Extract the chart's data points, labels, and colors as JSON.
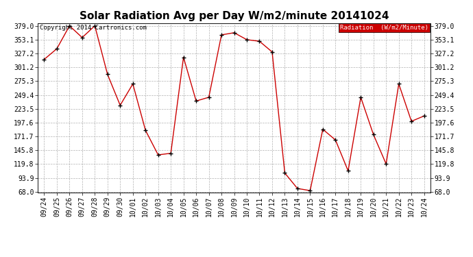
{
  "title": "Solar Radiation Avg per Day W/m2/minute 20141024",
  "copyright_text": "Copyright 2014 Cartronics.com",
  "legend_label": "Radiation  (W/m2/Minute)",
  "x_labels": [
    "09/24",
    "09/25",
    "09/26",
    "09/27",
    "09/28",
    "09/29",
    "09/30",
    "10/01",
    "10/02",
    "10/03",
    "10/04",
    "10/05",
    "10/06",
    "10/07",
    "10/08",
    "10/09",
    "10/10",
    "10/11",
    "10/12",
    "10/13",
    "10/14",
    "10/15",
    "10/16",
    "10/17",
    "10/18",
    "10/19",
    "10/20",
    "10/21",
    "10/22",
    "10/23",
    "10/24"
  ],
  "y_values": [
    316.0,
    336.0,
    379.0,
    357.0,
    379.0,
    288.0,
    230.0,
    270.0,
    183.0,
    137.0,
    140.0,
    320.0,
    238.0,
    245.0,
    362.0,
    366.0,
    353.0,
    350.0,
    330.0,
    103.0,
    74.0,
    70.0,
    185.0,
    165.0,
    107.0,
    245.0,
    175.0,
    120.0,
    270.0,
    200.0,
    210.0
  ],
  "line_color": "#cc0000",
  "marker_color": "#000000",
  "background_color": "#ffffff",
  "grid_color": "#b0b0b0",
  "y_ticks": [
    68.0,
    93.9,
    119.8,
    145.8,
    171.7,
    197.6,
    223.5,
    249.4,
    275.3,
    301.2,
    327.2,
    353.1,
    379.0
  ],
  "y_min": 68.0,
  "y_max": 379.0,
  "legend_bg": "#cc0000",
  "legend_text_color": "#ffffff",
  "title_fontsize": 11,
  "copyright_fontsize": 6.5,
  "tick_fontsize": 7
}
